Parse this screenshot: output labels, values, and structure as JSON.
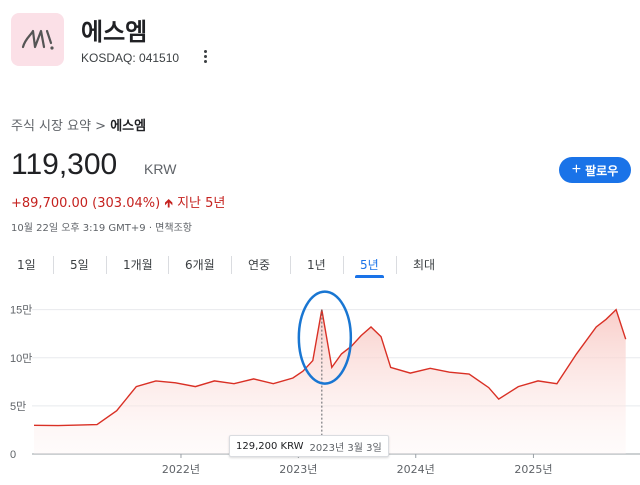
{
  "company": {
    "name": "에스엠",
    "ticker": "KOSDAQ: 041510"
  },
  "breadcrumb": {
    "parent": "주식 시장 요약",
    "separator": ">",
    "current": "에스엠"
  },
  "quote": {
    "price": "119,300",
    "currency": "KRW",
    "change": "+89,700.00 (303.04%)",
    "period": "지난 5년",
    "timestamp": "10월 22일 오후 3:19 GMT+9 · 면책조항"
  },
  "follow_button": {
    "label": "팔로우"
  },
  "tabs": [
    "1일",
    "5일",
    "1개월",
    "6개월",
    "연중",
    "1년",
    "5년",
    "최대"
  ],
  "active_tab": "5년",
  "tooltip": {
    "value": "129,200 KRW",
    "date": "2023년 3월 3일"
  },
  "colors": {
    "line": "#d93025",
    "area": "#fce8e6",
    "accent": "#1a73e8",
    "annotation": "#1976d2"
  },
  "chart_data": {
    "type": "area",
    "x": [
      "2020-10",
      "2020-12",
      "2021-02",
      "2021-04",
      "2021-06",
      "2021-08",
      "2021-10",
      "2021-12",
      "2022-02",
      "2022-04",
      "2022-06",
      "2022-08",
      "2022-10",
      "2022-12",
      "2023-01",
      "2023-02",
      "2023-03",
      "2023-04",
      "2023-05",
      "2023-06",
      "2023-07",
      "2023-08",
      "2023-09",
      "2023-10",
      "2023-12",
      "2024-02",
      "2024-04",
      "2024-06",
      "2024-08",
      "2024-09",
      "2024-11",
      "2025-01",
      "2025-03",
      "2025-05",
      "2025-07",
      "2025-08",
      "2025-09",
      "2025-10"
    ],
    "values": [
      29800,
      29500,
      30000,
      30500,
      45000,
      70000,
      76000,
      74000,
      70000,
      76000,
      73000,
      78000,
      73000,
      79000,
      86000,
      97000,
      150000,
      90000,
      104000,
      112000,
      123000,
      132000,
      122000,
      90000,
      84000,
      89000,
      85000,
      83000,
      69000,
      57000,
      70000,
      76000,
      73000,
      104000,
      132000,
      140000,
      150000,
      119300
    ],
    "x_ticks": [
      "2022년",
      "2023년",
      "2024년",
      "2025년"
    ],
    "y_ticks": [
      "15만",
      "10만",
      "5만",
      "0"
    ],
    "ylim": [
      0,
      160000
    ]
  }
}
